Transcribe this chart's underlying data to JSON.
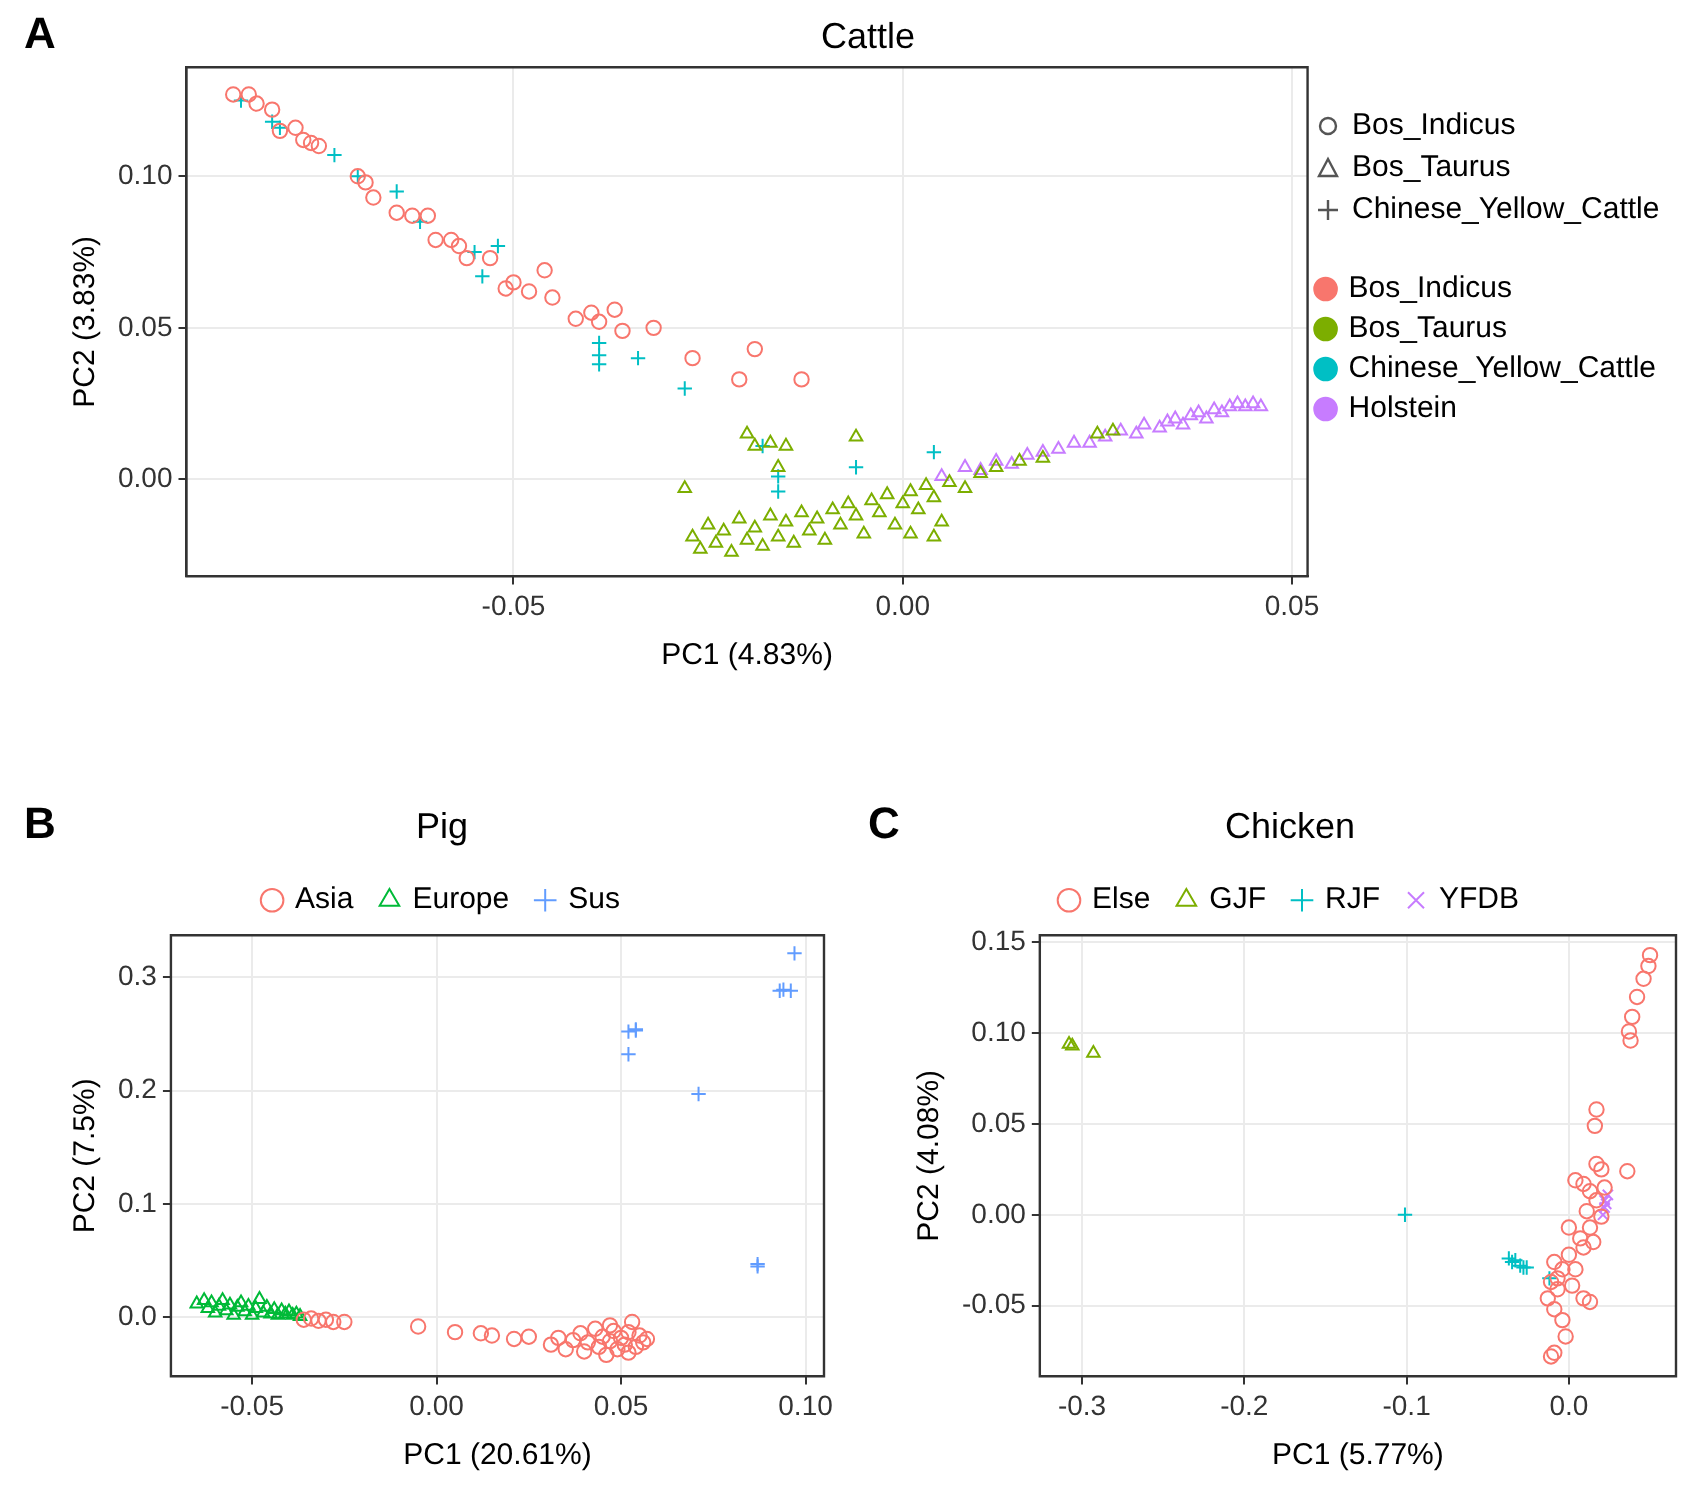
{
  "chart_data": [
    {
      "type": "scatter",
      "title": "Cattle",
      "xlabel": "PC1 (4.83%)",
      "ylabel": "PC2 (3.83%)",
      "annotations": [
        "A"
      ],
      "xlim": [
        -0.092,
        0.052
      ],
      "ylim": [
        -0.032,
        0.136
      ],
      "xticks": [
        {
          "value": -0.05,
          "label": "-0.05"
        },
        {
          "value": 0,
          "label": "0.00"
        },
        {
          "value": 0.05,
          "label": "0.05"
        }
      ],
      "yticks": [
        {
          "value": 0,
          "label": "0.00"
        },
        {
          "value": 0.05,
          "label": "0.05"
        },
        {
          "value": 0.1,
          "label": "0.10"
        }
      ],
      "grid": true,
      "legend": "right",
      "series": [
        {
          "name": "Bos_Indicus",
          "color": "#f8766d",
          "marker": "circle",
          "x": [
            -0.086,
            -0.084,
            -0.083,
            -0.081,
            -0.08,
            -0.078,
            -0.077,
            -0.076,
            -0.075,
            -0.07,
            -0.069,
            -0.068,
            -0.065,
            -0.063,
            -0.061,
            -0.06,
            -0.058,
            -0.057,
            -0.056,
            -0.053,
            -0.051,
            -0.05,
            -0.048,
            -0.046,
            -0.045,
            -0.042,
            -0.04,
            -0.039,
            -0.037,
            -0.036,
            -0.032,
            -0.027,
            -0.021,
            -0.019,
            -0.013
          ],
          "values": [
            0.127,
            0.127,
            0.124,
            0.122,
            0.115,
            0.116,
            0.112,
            0.111,
            0.11,
            0.1,
            0.098,
            0.093,
            0.088,
            0.087,
            0.087,
            0.079,
            0.079,
            0.077,
            0.073,
            0.073,
            0.063,
            0.065,
            0.062,
            0.069,
            0.06,
            0.053,
            0.055,
            0.052,
            0.056,
            0.049,
            0.05,
            0.04,
            0.033,
            0.043,
            0.033
          ]
        },
        {
          "name": "Bos_Taurus",
          "color": "#7cae00",
          "marker": "triangle",
          "x": [
            -0.027,
            -0.026,
            -0.025,
            -0.024,
            -0.023,
            -0.022,
            -0.021,
            -0.02,
            -0.019,
            -0.018,
            -0.017,
            -0.016,
            -0.015,
            -0.014,
            -0.013,
            -0.012,
            -0.011,
            -0.01,
            -0.009,
            -0.008,
            -0.007,
            -0.006,
            -0.005,
            -0.004,
            -0.003,
            -0.002,
            -0.001,
            0.0,
            0.001,
            0.001,
            0.002,
            0.003,
            0.004,
            0.004,
            0.005,
            0.006,
            0.008,
            0.01,
            0.012,
            0.015,
            0.018,
            0.025,
            0.027,
            -0.02,
            -0.019,
            -0.017,
            -0.015,
            -0.028,
            -0.006,
            -0.016
          ],
          "values": [
            -0.019,
            -0.023,
            -0.015,
            -0.021,
            -0.017,
            -0.024,
            -0.013,
            -0.02,
            -0.016,
            -0.022,
            -0.012,
            -0.019,
            -0.014,
            -0.021,
            -0.011,
            -0.017,
            -0.013,
            -0.02,
            -0.01,
            -0.015,
            -0.008,
            -0.012,
            -0.018,
            -0.007,
            -0.011,
            -0.005,
            -0.015,
            -0.008,
            -0.004,
            -0.018,
            -0.01,
            -0.002,
            -0.019,
            -0.006,
            -0.014,
            -0.001,
            -0.003,
            0.002,
            0.004,
            0.006,
            0.007,
            0.015,
            0.016,
            0.015,
            0.011,
            0.012,
            0.011,
            -0.003,
            0.014,
            0.004
          ]
        },
        {
          "name": "Chinese_Yellow_Cattle",
          "color": "#00bfc4",
          "marker": "cross",
          "x": [
            -0.085,
            -0.081,
            -0.08,
            -0.073,
            -0.07,
            -0.065,
            -0.062,
            -0.055,
            -0.054,
            -0.052,
            -0.039,
            -0.039,
            -0.039,
            -0.034,
            -0.028,
            -0.018,
            -0.016,
            -0.016,
            -0.006,
            0.004
          ],
          "values": [
            0.125,
            0.118,
            0.116,
            0.107,
            0.1,
            0.095,
            0.085,
            0.075,
            0.067,
            0.077,
            0.045,
            0.041,
            0.038,
            0.04,
            0.03,
            0.011,
            0.001,
            -0.004,
            0.004,
            0.009
          ]
        },
        {
          "name": "Holstein",
          "color": "#c77cff",
          "marker": "triangle",
          "x": [
            0.005,
            0.008,
            0.01,
            0.012,
            0.014,
            0.016,
            0.018,
            0.02,
            0.022,
            0.024,
            0.026,
            0.028,
            0.03,
            0.031,
            0.033,
            0.034,
            0.035,
            0.036,
            0.037,
            0.038,
            0.039,
            0.04,
            0.041,
            0.042,
            0.043,
            0.044,
            0.045,
            0.046
          ],
          "values": [
            0.001,
            0.004,
            0.003,
            0.006,
            0.005,
            0.008,
            0.009,
            0.01,
            0.012,
            0.012,
            0.014,
            0.016,
            0.015,
            0.018,
            0.017,
            0.019,
            0.02,
            0.018,
            0.021,
            0.022,
            0.02,
            0.023,
            0.022,
            0.024,
            0.025,
            0.024,
            0.025,
            0.024
          ]
        }
      ]
    },
    {
      "type": "scatter",
      "title": "Pig",
      "xlabel": "PC1 (20.61%)",
      "ylabel": "PC2 (7.5%)",
      "annotations": [
        "B"
      ],
      "xlim": [
        -0.072,
        0.105
      ],
      "ylim": [
        -0.052,
        0.337
      ],
      "xticks": [
        {
          "value": -0.05,
          "label": "-0.05"
        },
        {
          "value": 0,
          "label": "0.00"
        },
        {
          "value": 0.05,
          "label": "0.05"
        },
        {
          "value": 0.1,
          "label": "0.10"
        }
      ],
      "yticks": [
        {
          "value": 0,
          "label": "0.0"
        },
        0.1,
        0.2,
        0.3
      ],
      "grid": true,
      "legend": "top",
      "series": [
        {
          "name": "Asia",
          "color": "#f8766d",
          "marker": "circle",
          "x": [
            -0.036,
            -0.034,
            -0.032,
            -0.03,
            -0.028,
            -0.025,
            -0.005,
            0.005,
            0.012,
            0.015,
            0.021,
            0.025,
            0.031,
            0.033,
            0.035,
            0.037,
            0.039,
            0.04,
            0.041,
            0.043,
            0.044,
            0.045,
            0.046,
            0.047,
            0.047,
            0.048,
            0.049,
            0.05,
            0.051,
            0.052,
            0.052,
            0.053,
            0.054,
            0.055,
            0.056,
            0.057
          ],
          "values": [
            -0.002,
            -0.001,
            -0.003,
            -0.002,
            -0.004,
            -0.004,
            -0.008,
            -0.013,
            -0.014,
            -0.016,
            -0.019,
            -0.017,
            -0.024,
            -0.018,
            -0.028,
            -0.02,
            -0.014,
            -0.03,
            -0.022,
            -0.01,
            -0.026,
            -0.017,
            -0.033,
            -0.007,
            -0.021,
            -0.012,
            -0.028,
            -0.018,
            -0.024,
            -0.031,
            -0.013,
            -0.004,
            -0.026,
            -0.016,
            -0.022,
            -0.019
          ]
        },
        {
          "name": "Europe",
          "color": "#00ba38",
          "marker": "triangle",
          "x": [
            -0.065,
            -0.063,
            -0.062,
            -0.061,
            -0.06,
            -0.059,
            -0.058,
            -0.057,
            -0.056,
            -0.055,
            -0.054,
            -0.053,
            -0.052,
            -0.051,
            -0.05,
            -0.049,
            -0.048,
            -0.047,
            -0.046,
            -0.045,
            -0.044,
            -0.043,
            -0.042,
            -0.041,
            -0.04,
            -0.039,
            -0.038,
            -0.037
          ],
          "values": [
            0.012,
            0.015,
            0.008,
            0.013,
            0.004,
            0.01,
            0.015,
            0.006,
            0.011,
            0.002,
            0.009,
            0.013,
            0.005,
            0.01,
            0.002,
            0.008,
            0.016,
            0.004,
            0.009,
            0.003,
            0.007,
            0.002,
            0.006,
            0.003,
            0.005,
            0.002,
            0.003,
            0.001
          ]
        },
        {
          "name": "Sus",
          "color": "#619cff",
          "marker": "cross",
          "x": [
            0.097,
            0.093,
            0.094,
            0.096,
            0.054,
            0.052,
            0.054,
            0.052,
            0.071,
            0.087,
            0.087
          ],
          "values": [
            0.321,
            0.288,
            0.289,
            0.288,
            0.253,
            0.252,
            0.254,
            0.232,
            0.197,
            0.047,
            0.045
          ]
        }
      ]
    },
    {
      "type": "scatter",
      "title": "Chicken",
      "xlabel": "PC1 (5.77%)",
      "ylabel": "PC2 (4.08%)",
      "annotations": [
        "C"
      ],
      "xlim": [
        -0.326,
        0.066
      ],
      "ylim": [
        -0.089,
        0.154
      ],
      "xticks": [
        -0.3,
        -0.2,
        -0.1,
        {
          "value": 0,
          "label": "0.0"
        }
      ],
      "yticks": [
        -0.05,
        {
          "value": 0,
          "label": "0.00"
        },
        0.05,
        {
          "value": 0.1,
          "label": "0.10"
        },
        0.15
      ],
      "grid": true,
      "legend": "top",
      "series": [
        {
          "name": "Else",
          "color": "#f8766d",
          "marker": "circle",
          "x": [
            0.05,
            0.049,
            0.046,
            0.042,
            0.039,
            0.037,
            0.038,
            0.017,
            0.016,
            0.036,
            0.017,
            0.02,
            0.004,
            0.009,
            0.013,
            0.017,
            0.011,
            0.013,
            0.007,
            0.009,
            0.0,
            -0.004,
            -0.009,
            -0.011,
            -0.007,
            -0.013,
            -0.009,
            -0.004,
            -0.002,
            -0.009,
            -0.011,
            0.004,
            0.009,
            0.013,
            0.002,
            0.0,
            0.015,
            0.02,
            0.022,
            -0.007
          ],
          "values": [
            0.143,
            0.137,
            0.13,
            0.12,
            0.109,
            0.101,
            0.096,
            0.058,
            0.049,
            0.024,
            0.028,
            0.025,
            0.019,
            0.017,
            0.013,
            0.008,
            0.002,
            -0.007,
            -0.013,
            -0.018,
            -0.022,
            -0.03,
            -0.026,
            -0.037,
            -0.041,
            -0.046,
            -0.052,
            -0.058,
            -0.067,
            -0.076,
            -0.078,
            -0.03,
            -0.046,
            -0.048,
            -0.039,
            -0.007,
            -0.015,
            -0.001,
            0.015,
            -0.035
          ]
        },
        {
          "name": "GJF",
          "color": "#7cae00",
          "marker": "triangle",
          "x": [
            -0.308,
            -0.306,
            -0.293
          ],
          "values": [
            0.094,
            0.093,
            0.089
          ]
        },
        {
          "name": "RJF",
          "color": "#00bfc4",
          "marker": "cross",
          "x": [
            -0.101,
            -0.037,
            -0.035,
            -0.033,
            -0.03,
            -0.028,
            -0.026,
            -0.012
          ],
          "values": [
            0.0,
            -0.024,
            -0.026,
            -0.025,
            -0.028,
            -0.029,
            -0.029,
            -0.035
          ]
        },
        {
          "name": "YFDB",
          "color": "#c77cff",
          "marker": "x",
          "x": [
            0.022,
            0.022,
            0.024,
            0.021,
            0.023
          ],
          "values": [
            0.008,
            0.004,
            0.011,
            0.0,
            0.006
          ]
        }
      ]
    }
  ]
}
